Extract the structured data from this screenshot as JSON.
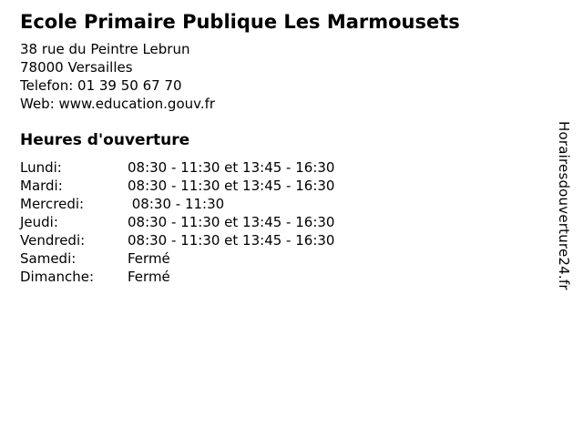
{
  "colors": {
    "background": "#ffffff",
    "text": "#000000"
  },
  "business": {
    "name": "Ecole Primaire Publique Les Marmousets",
    "address_street": "38 rue du Peintre Lebrun",
    "address_city": "78000 Versailles",
    "phone_line": "Telefon: 01 39 50 67 70",
    "web_line": "Web: www.education.gouv.fr"
  },
  "hours": {
    "title": "Heures d'ouverture",
    "rows": [
      {
        "day": "Lundi:",
        "time": "08:30 - 11:30 et 13:45 - 16:30"
      },
      {
        "day": "Mardi:",
        "time": "08:30 - 11:30 et 13:45 - 16:30"
      },
      {
        "day": "Mercredi:",
        "time": " 08:30 - 11:30"
      },
      {
        "day": "Jeudi:",
        "time": "08:30 - 11:30 et 13:45 - 16:30"
      },
      {
        "day": "Vendredi:",
        "time": "08:30 - 11:30 et 13:45 - 16:30"
      },
      {
        "day": "Samedi:",
        "time": "Fermé"
      },
      {
        "day": "Dimanche:",
        "time": "Fermé"
      }
    ]
  },
  "watermark": "Horairesdouverture24.fr"
}
